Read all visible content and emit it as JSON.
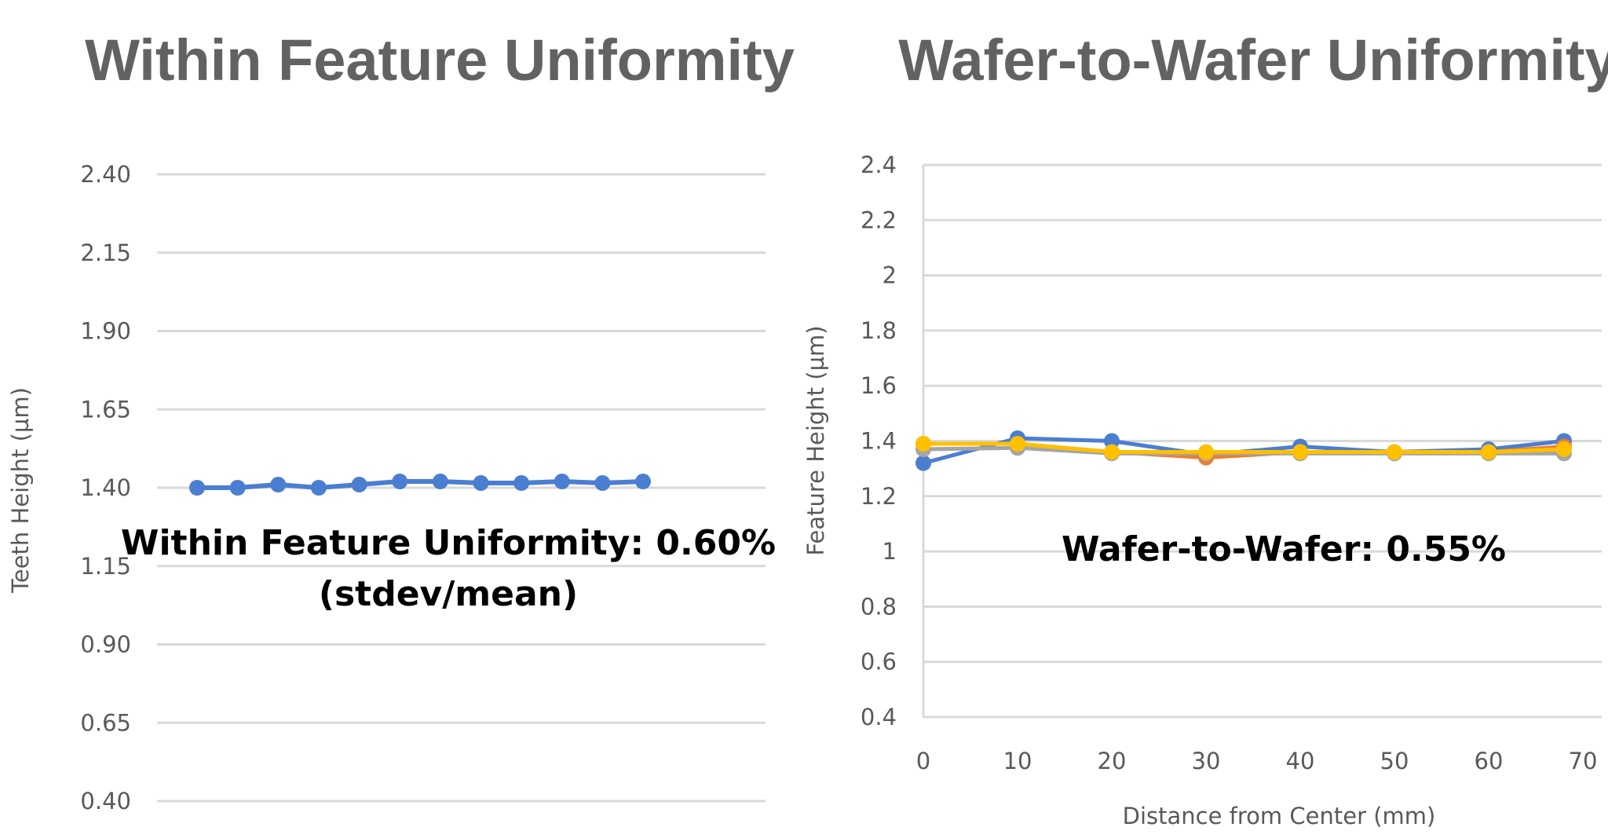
{
  "charts": [
    {
      "title": "Within Feature Uniformity",
      "annotation_line1": "Within Feature Uniformity: 0.60%",
      "annotation_line2": "(stdev/mean)"
    },
    {
      "title": "Wafer-to-Wafer Uniformity",
      "annotation_line1": "Wafer-to-Wafer: 0.55%"
    }
  ],
  "colors": {
    "title": "#626262",
    "axis_text": "#595959",
    "grid": "#d9d9d9",
    "series": [
      "#4a7ed1",
      "#ed7d31",
      "#a5a5a5",
      "#ffc000"
    ]
  },
  "chart_data": [
    {
      "type": "line",
      "title": "Within Feature Uniformity",
      "xlabel": "",
      "ylabel": "Teeth Height (µm)",
      "ylim": [
        0.4,
        2.4
      ],
      "yticks": [
        "0.40",
        "0.65",
        "0.90",
        "1.15",
        "1.40",
        "1.65",
        "1.90",
        "2.15",
        "2.40"
      ],
      "grid": true,
      "series": [
        {
          "values": [
            1.4,
            1.4,
            1.41,
            1.4,
            1.41,
            1.42,
            1.42,
            1.415,
            1.415,
            1.42,
            1.415,
            1.42
          ]
        }
      ],
      "annotation": "Within Feature Uniformity: 0.60% (stdev/mean)"
    },
    {
      "type": "line",
      "title": "Wafer-to-Wafer Uniformity",
      "xlabel": "Distance from Center (mm)",
      "ylabel": "Feature Height (µm)",
      "xlim": [
        0,
        70
      ],
      "ylim": [
        0.4,
        2.4
      ],
      "xticks": [
        "0",
        "10",
        "20",
        "30",
        "40",
        "50",
        "60",
        "70"
      ],
      "yticks": [
        "0.4",
        "0.6",
        "0.8",
        "1",
        "1.2",
        "1.4",
        "1.6",
        "1.8",
        "2",
        "2.2",
        "2.4"
      ],
      "grid": true,
      "x": [
        0,
        10,
        20,
        30,
        40,
        50,
        60,
        68
      ],
      "series": [
        {
          "values": [
            1.32,
            1.41,
            1.4,
            1.35,
            1.38,
            1.36,
            1.37,
            1.4
          ]
        },
        {
          "values": [
            1.39,
            1.39,
            1.36,
            1.34,
            1.36,
            1.36,
            1.36,
            1.38
          ]
        },
        {
          "values": [
            1.37,
            1.375,
            1.355,
            1.355,
            1.355,
            1.355,
            1.355,
            1.355
          ]
        },
        {
          "values": [
            1.39,
            1.39,
            1.36,
            1.36,
            1.36,
            1.36,
            1.36,
            1.37
          ]
        }
      ],
      "annotation": "Wafer-to-Wafer: 0.55%"
    }
  ]
}
